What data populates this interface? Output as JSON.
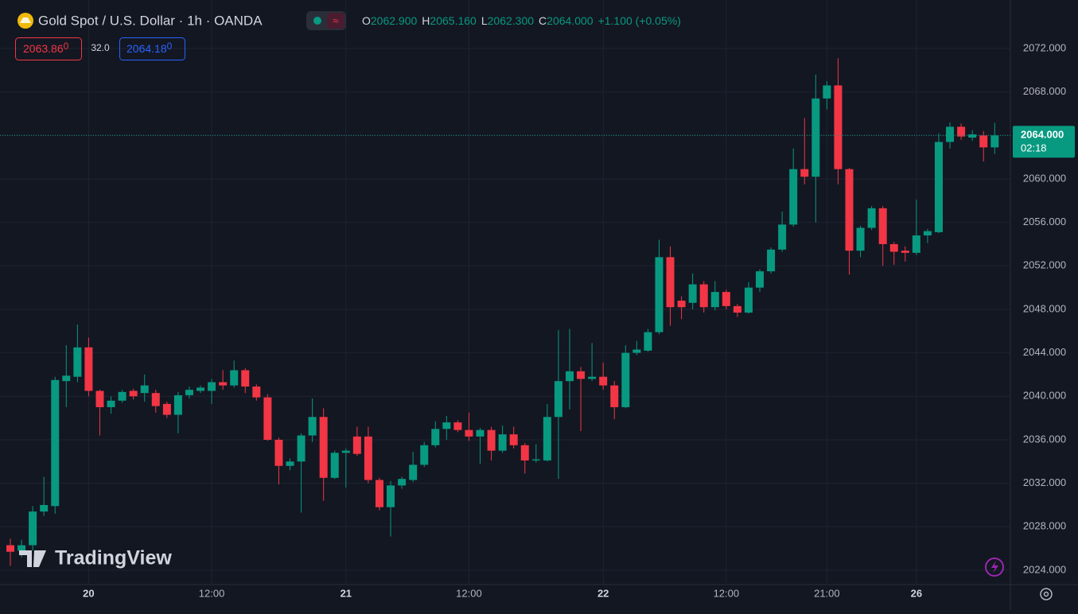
{
  "header": {
    "title": "Gold Spot / U.S. Dollar · 1h · OANDA",
    "ohlc": [
      {
        "key": "O",
        "value": "2062.900"
      },
      {
        "key": "H",
        "value": "2065.160"
      },
      {
        "key": "L",
        "value": "2062.300"
      },
      {
        "key": "C",
        "value": "2064.000"
      }
    ],
    "change": "+1.100 (+0.05%)",
    "sell": {
      "price": "2063.86",
      "pip": "0"
    },
    "spread": "32.0",
    "buy": {
      "price": "2064.18",
      "pip": "0"
    },
    "watermark": "TradingView"
  },
  "chart_data": {
    "type": "candlestick",
    "up_color": "#089981",
    "down_color": "#f23645",
    "grid": true,
    "ylim": [
      2022.68,
      2076.46
    ],
    "yticks": [
      {
        "value": 2024,
        "label": "2024.000"
      },
      {
        "value": 2028,
        "label": "2028.000"
      },
      {
        "value": 2032,
        "label": "2032.000"
      },
      {
        "value": 2036,
        "label": "2036.000"
      },
      {
        "value": 2040,
        "label": "2040.000"
      },
      {
        "value": 2044,
        "label": "2044.000"
      },
      {
        "value": 2048,
        "label": "2048.000"
      },
      {
        "value": 2052,
        "label": "2052.000"
      },
      {
        "value": 2056,
        "label": "2056.000"
      },
      {
        "value": 2060,
        "label": "2060.000"
      },
      {
        "value": 2064,
        "label": "2064.000"
      },
      {
        "value": 2068,
        "label": "2068.000"
      },
      {
        "value": 2072,
        "label": "2072.000"
      }
    ],
    "categories": [
      null,
      null,
      null,
      null,
      null,
      null,
      null,
      "20",
      null,
      null,
      null,
      null,
      null,
      null,
      null,
      null,
      null,
      null,
      "12:00",
      null,
      null,
      null,
      null,
      null,
      null,
      null,
      null,
      null,
      null,
      null,
      "21",
      null,
      null,
      null,
      null,
      null,
      null,
      null,
      null,
      null,
      null,
      "12:00",
      null,
      null,
      null,
      null,
      null,
      null,
      null,
      null,
      null,
      null,
      null,
      "22",
      null,
      null,
      null,
      null,
      null,
      null,
      null,
      null,
      null,
      null,
      "12:00",
      null,
      null,
      null,
      null,
      null,
      null,
      null,
      null,
      "21:00",
      null,
      null,
      null,
      null,
      null,
      null,
      null,
      "26",
      null,
      null,
      null,
      null,
      null,
      null,
      null
    ],
    "open": [
      2026.3,
      2025.8,
      2026.3,
      2029.4,
      2029.9,
      2041.4,
      2041.8,
      2044.5,
      2040.5,
      2039.0,
      2039.6,
      2040.5,
      2040.3,
      2040.3,
      2039.3,
      2038.3,
      2040.1,
      2040.5,
      2040.5,
      2041.3,
      2041.0,
      2042.4,
      2040.9,
      2039.9,
      2036.0,
      2033.6,
      2034.0,
      2036.4,
      2038.1,
      2032.5,
      2034.8,
      2036.3,
      2036.3,
      2032.3,
      2029.8,
      2031.8,
      2032.3,
      2033.7,
      2035.5,
      2037.0,
      2037.6,
      2036.9,
      2036.3,
      2036.9,
      2035.0,
      2036.5,
      2035.5,
      2034.1,
      2034.1,
      2038.1,
      2041.4,
      2042.3,
      2041.6,
      2041.8,
      2041.0,
      2039.0,
      2044.0,
      2044.2,
      2045.9,
      2052.8,
      2048.8,
      2048.6,
      2050.3,
      2048.2,
      2049.6,
      2048.3,
      2047.7,
      2050.0,
      2051.5,
      2053.5,
      2055.8,
      2060.9,
      2060.2,
      2067.4,
      2068.6,
      2060.9,
      2053.4,
      2055.5,
      2057.3,
      2054.0,
      2053.4,
      2053.2,
      2054.8,
      2055.1,
      2063.4,
      2064.8,
      2063.8,
      2064.0,
      2062.9
    ],
    "high": [
      2026.9,
      2026.8,
      2029.9,
      2032.6,
      2041.8,
      2044.7,
      2046.6,
      2045.4,
      2040.6,
      2040.0,
      2040.6,
      2040.7,
      2042.0,
      2040.6,
      2039.5,
      2040.4,
      2040.9,
      2041.0,
      2041.6,
      2042.4,
      2043.3,
      2042.6,
      2041.1,
      2040.2,
      2036.2,
      2034.3,
      2036.6,
      2039.8,
      2038.9,
      2035.0,
      2035.2,
      2037.2,
      2037.2,
      2032.5,
      2032.2,
      2032.6,
      2034.9,
      2035.8,
      2037.7,
      2038.2,
      2037.8,
      2038.5,
      2037.1,
      2037.2,
      2037.3,
      2037.2,
      2035.7,
      2035.6,
      2039.3,
      2046.1,
      2046.2,
      2042.7,
      2044.9,
      2043.1,
      2041.4,
      2044.7,
      2045.1,
      2046.2,
      2054.4,
      2053.8,
      2049.2,
      2051.3,
      2050.6,
      2050.6,
      2049.8,
      2048.5,
      2050.5,
      2051.7,
      2053.7,
      2057.0,
      2062.8,
      2065.6,
      2069.6,
      2069.0,
      2071.1,
      2061.0,
      2055.7,
      2057.5,
      2057.5,
      2054.2,
      2053.8,
      2058.1,
      2055.4,
      2064.2,
      2065.2,
      2065.1,
      2064.5,
      2064.4,
      2065.16
    ],
    "low": [
      2024.4,
      2025.2,
      2025.8,
      2029.0,
      2029.2,
      2039.0,
      2041.3,
      2040.0,
      2036.4,
      2038.4,
      2039.4,
      2039.7,
      2039.5,
      2038.5,
      2038.0,
      2036.6,
      2039.8,
      2040.3,
      2039.3,
      2040.6,
      2040.8,
      2040.3,
      2039.6,
      2035.9,
      2031.9,
      2033.2,
      2029.3,
      2035.8,
      2030.4,
      2032.4,
      2031.6,
      2034.5,
      2032.0,
      2029.5,
      2027.1,
      2031.5,
      2032.1,
      2033.5,
      2035.3,
      2036.0,
      2036.7,
      2035.9,
      2033.8,
      2034.1,
      2034.8,
      2035.2,
      2032.9,
      2033.9,
      2034.0,
      2032.4,
      2038.8,
      2036.8,
      2041.4,
      2040.6,
      2037.9,
      2038.9,
      2043.8,
      2044.1,
      2045.7,
      2046.5,
      2047.1,
      2048.0,
      2047.7,
      2047.9,
      2048.0,
      2047.3,
      2047.6,
      2049.6,
      2051.3,
      2053.3,
      2055.6,
      2059.5,
      2056.0,
      2066.4,
      2059.5,
      2051.2,
      2052.8,
      2055.3,
      2052.0,
      2052.1,
      2052.4,
      2053.0,
      2054.1,
      2055.0,
      2062.8,
      2063.6,
      2063.5,
      2061.6,
      2062.3
    ],
    "close": [
      2025.7,
      2026.3,
      2029.4,
      2030.0,
      2041.5,
      2041.9,
      2044.5,
      2040.5,
      2039.0,
      2039.6,
      2040.4,
      2040.0,
      2041.0,
      2039.1,
      2038.3,
      2040.1,
      2040.6,
      2040.8,
      2041.3,
      2041.0,
      2042.4,
      2040.9,
      2039.9,
      2036.0,
      2033.6,
      2034.0,
      2036.4,
      2038.1,
      2032.5,
      2034.8,
      2035.0,
      2034.7,
      2032.3,
      2029.8,
      2031.8,
      2032.4,
      2033.7,
      2035.5,
      2037.0,
      2037.6,
      2036.9,
      2036.3,
      2036.9,
      2035.0,
      2036.5,
      2035.5,
      2034.1,
      2034.2,
      2038.1,
      2041.4,
      2042.3,
      2041.6,
      2041.8,
      2041.0,
      2039.0,
      2044.0,
      2044.3,
      2045.9,
      2052.8,
      2048.2,
      2048.2,
      2050.3,
      2048.2,
      2049.6,
      2048.3,
      2047.7,
      2050.0,
      2051.5,
      2053.5,
      2055.8,
      2060.9,
      2060.2,
      2067.4,
      2068.6,
      2060.9,
      2053.4,
      2055.5,
      2057.3,
      2054.0,
      2053.3,
      2053.2,
      2054.8,
      2055.2,
      2063.4,
      2064.8,
      2063.9,
      2064.1,
      2062.9,
      2064.0
    ],
    "last_price_label": "2064.000",
    "countdown": "02:18"
  }
}
